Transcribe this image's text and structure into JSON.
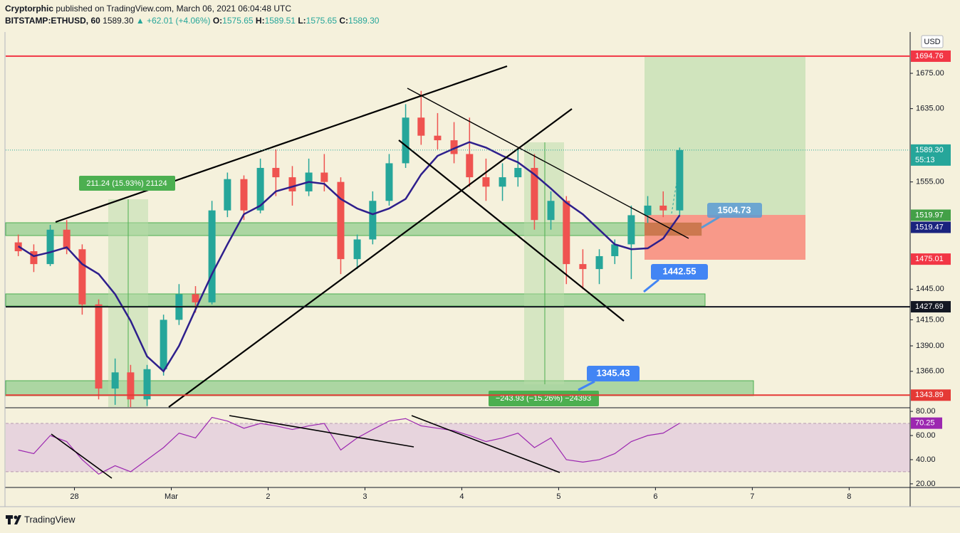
{
  "header": {
    "author": "Cryptorphic",
    "published": "published on TradingView.com, March 06, 2021 06:04:48 UTC",
    "symbol": "BITSTAMP:ETHUSD, 60",
    "last": "1589.30",
    "change": "▲ +62.01 (+4.06%)",
    "ohlc": [
      {
        "label": "O:",
        "value": "1575.65"
      },
      {
        "label": "H:",
        "value": "1589.51"
      },
      {
        "label": "L:",
        "value": "1575.65"
      },
      {
        "label": "C:",
        "value": "1589.30"
      }
    ]
  },
  "annotations": [
    "211.24 (15.93%) 21124",
    "−243.93 (−15.26%) −24393",
    "1504.73",
    "1442.55",
    "1345.43"
  ],
  "footer": "TradingView",
  "chart_data": [
    {
      "type": "candlestick",
      "x": [
        -0.58,
        -0.42,
        -0.25,
        -0.08,
        0.08,
        0.25,
        0.42,
        0.58,
        0.75,
        0.92,
        1.08,
        1.25,
        1.42,
        1.58,
        1.75,
        1.92,
        2.08,
        2.25,
        2.42,
        2.58,
        2.75,
        2.92,
        3.08,
        3.25,
        3.42,
        3.58,
        3.75,
        3.92,
        4.08,
        4.25,
        4.42,
        4.58,
        4.75,
        4.92,
        5.08,
        5.25,
        5.42,
        5.58,
        5.75,
        5.92,
        6.08,
        6.25
      ],
      "open": [
        1492,
        1483,
        1470,
        1505,
        1485,
        1430,
        1350,
        1365,
        1340,
        1368,
        1415,
        1440,
        1432,
        1525,
        1558,
        1525,
        1570,
        1560,
        1545,
        1565,
        1555,
        1475,
        1495,
        1535,
        1575,
        1625,
        1605,
        1600,
        1585,
        1560,
        1550,
        1560,
        1570,
        1515,
        1535,
        1470,
        1465,
        1478,
        1490,
        1520,
        1530,
        1525
      ],
      "high": [
        1500,
        1490,
        1510,
        1515,
        1490,
        1435,
        1378,
        1372,
        1372,
        1420,
        1450,
        1448,
        1535,
        1565,
        1562,
        1580,
        1590,
        1572,
        1580,
        1585,
        1560,
        1500,
        1545,
        1585,
        1640,
        1655,
        1630,
        1620,
        1625,
        1580,
        1575,
        1590,
        1585,
        1545,
        1540,
        1485,
        1485,
        1495,
        1530,
        1540,
        1545,
        1592
      ],
      "low": [
        1478,
        1462,
        1468,
        1480,
        1420,
        1340,
        1335,
        1333,
        1334,
        1362,
        1410,
        1422,
        1430,
        1518,
        1515,
        1522,
        1540,
        1530,
        1540,
        1545,
        1460,
        1465,
        1490,
        1530,
        1570,
        1595,
        1590,
        1575,
        1550,
        1535,
        1535,
        1550,
        1505,
        1505,
        1450,
        1445,
        1450,
        1470,
        1455,
        1512,
        1518,
        1520
      ],
      "close": [
        1483,
        1470,
        1505,
        1485,
        1430,
        1350,
        1365,
        1340,
        1368,
        1415,
        1440,
        1432,
        1525,
        1558,
        1525,
        1570,
        1560,
        1545,
        1565,
        1555,
        1475,
        1495,
        1535,
        1575,
        1625,
        1605,
        1600,
        1585,
        1560,
        1550,
        1560,
        1570,
        1515,
        1535,
        1470,
        1465,
        1478,
        1490,
        1520,
        1530,
        1525,
        1589.3
      ],
      "up_color": "#26a69a",
      "down_color": "#ef5350",
      "ma": {
        "color": "#2e1f8c",
        "values": [
          1488,
          1478,
          1482,
          1487,
          1470,
          1460,
          1440,
          1414,
          1380,
          1366,
          1390,
          1425,
          1460,
          1490,
          1521,
          1530,
          1545,
          1550,
          1555,
          1553,
          1537,
          1527,
          1521,
          1527,
          1537,
          1563,
          1583,
          1591,
          1598,
          1592,
          1583,
          1576,
          1563,
          1548,
          1533,
          1521,
          1505,
          1490,
          1485,
          1486,
          1496,
          1520
        ]
      },
      "xlim": [
        -0.71,
        8.63
      ],
      "xticks": [
        {
          "value": 0,
          "label": "28"
        },
        {
          "value": 1,
          "label": "Mar"
        },
        2,
        3,
        4,
        5,
        6,
        7,
        8
      ],
      "ylim": [
        1333,
        1723
      ],
      "log": true,
      "yticks": [
        {
          "value": 1675,
          "label": "1675.00"
        },
        {
          "value": 1635,
          "label": "1635.00"
        },
        {
          "value": 1555,
          "label": "1555.00"
        },
        {
          "value": 1445,
          "label": "1445.00"
        },
        {
          "value": 1415,
          "label": "1415.00"
        },
        {
          "value": 1390,
          "label": "1390.00"
        },
        {
          "value": 1366,
          "label": "1366.00"
        }
      ],
      "currency": "USD",
      "price_labels": [
        {
          "value": 1694.76,
          "label": "1694.76",
          "color": "#f23645",
          "line": "solid"
        },
        {
          "value": 1589.3,
          "label": "1589.30",
          "color": "#26a69a",
          "line": "dotted",
          "countdown": "55:13"
        },
        {
          "value": 1519.97,
          "label": "1519.97",
          "color": "#43a047"
        },
        {
          "value": 1519.47,
          "label": "1519.47",
          "color": "#1a237e"
        },
        {
          "value": 1475.01,
          "label": "1475.01",
          "color": "#f23645"
        },
        {
          "value": 1427.69,
          "label": "1427.69",
          "color": "#131722",
          "line": "solid"
        },
        {
          "value": 1343.89,
          "label": "1343.89",
          "color": "#e53935",
          "line": "solid"
        }
      ]
    },
    {
      "type": "line",
      "values": [
        48,
        45,
        60,
        55,
        40,
        28,
        35,
        30,
        40,
        50,
        62,
        58,
        75,
        72,
        66,
        70,
        68,
        65,
        68,
        70,
        48,
        58,
        65,
        72,
        74,
        68,
        66,
        64,
        60,
        55,
        58,
        62,
        50,
        58,
        40,
        38,
        40,
        45,
        55,
        60,
        62,
        70.25
      ],
      "color": "#9c27b0",
      "ylim": [
        17,
        82.4
      ],
      "yticks": [
        {
          "value": 80,
          "label": "80.00"
        },
        {
          "value": 60,
          "label": "60.00"
        },
        {
          "value": 40,
          "label": "40.00"
        },
        {
          "value": 20,
          "label": "20.00"
        }
      ],
      "band": [
        30,
        70
      ],
      "last_label": {
        "value": 70.25,
        "label": "70.25"
      }
    }
  ]
}
